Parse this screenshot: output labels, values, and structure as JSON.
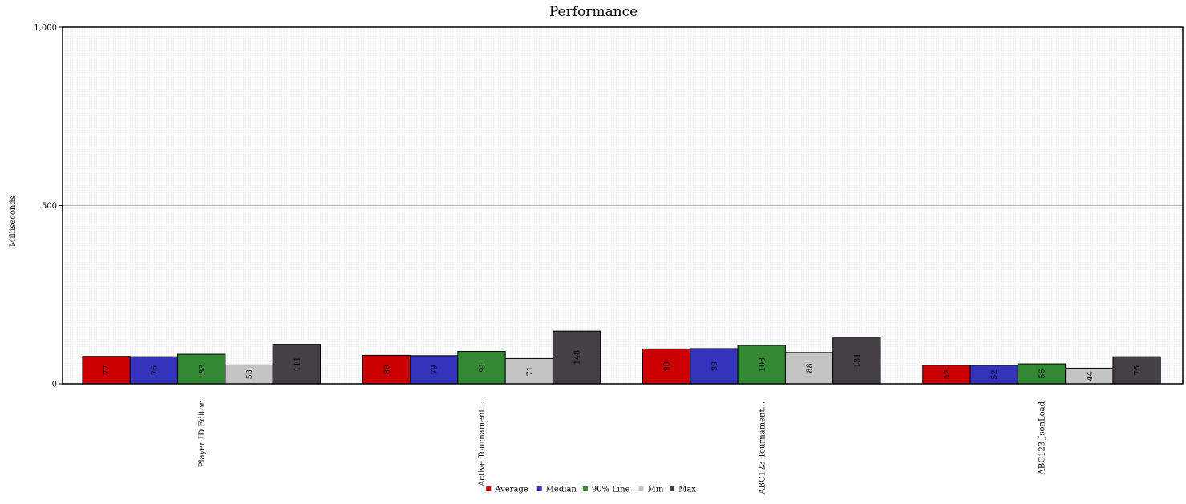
{
  "chart_data": {
    "type": "bar",
    "title": "Performance",
    "ylabel": "Milliseconds",
    "xlabel": "",
    "ylim": [
      0,
      1000
    ],
    "yticks": [
      "0",
      "500",
      "1,000"
    ],
    "ytick_values": [
      0,
      500,
      1000
    ],
    "grid": true,
    "legend_position": "bottom",
    "categories": [
      "Player ID Editor",
      "Active Tournament...",
      "ABC123 Tournament...",
      "ABC123 JsonLoad"
    ],
    "series": [
      {
        "name": "Average",
        "color": "#cc0000",
        "values": [
          77,
          80,
          98,
          52
        ]
      },
      {
        "name": "Median",
        "color": "#3333bb",
        "values": [
          76,
          79,
          99,
          52
        ]
      },
      {
        "name": "90% Line",
        "color": "#338833",
        "values": [
          83,
          91,
          108,
          56
        ]
      },
      {
        "name": "Min",
        "color": "#c4c4c4",
        "values": [
          53,
          71,
          88,
          44
        ]
      },
      {
        "name": "Max",
        "color": "#444043",
        "values": [
          111,
          148,
          131,
          76
        ]
      }
    ]
  }
}
